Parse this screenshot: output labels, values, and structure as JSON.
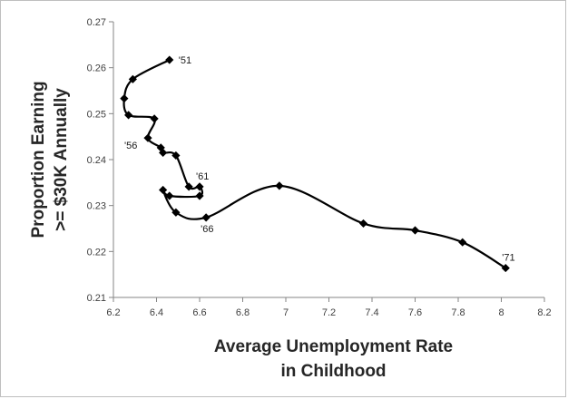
{
  "chart_data": {
    "type": "line",
    "smooth": true,
    "markers": "diamond",
    "line_color": "#000000",
    "grid": false,
    "legend": "none",
    "xlabel_lines": [
      "Average Unemployment Rate",
      "in Childhood"
    ],
    "ylabel_lines": [
      "Proportion Earning",
      ">= $30K Annually"
    ],
    "xlim": [
      6.2,
      8.2
    ],
    "ylim": [
      0.21,
      0.27
    ],
    "x_ticks": [
      "6.2",
      "6.4",
      "6.6",
      "6.8",
      "7",
      "7.2",
      "7.4",
      "7.6",
      "7.8",
      "8",
      "8.2"
    ],
    "y_ticks": [
      "0.21",
      "0.22",
      "0.23",
      "0.24",
      "0.25",
      "0.26",
      "0.27"
    ],
    "series": [
      {
        "points": [
          {
            "x": 6.46,
            "y": 0.2617,
            "label": "'51"
          },
          {
            "x": 6.29,
            "y": 0.2575
          },
          {
            "x": 6.25,
            "y": 0.2533
          },
          {
            "x": 6.27,
            "y": 0.2497
          },
          {
            "x": 6.39,
            "y": 0.2489
          },
          {
            "x": 6.36,
            "y": 0.2447,
            "label": "'56"
          },
          {
            "x": 6.42,
            "y": 0.2426
          },
          {
            "x": 6.43,
            "y": 0.2415
          },
          {
            "x": 6.49,
            "y": 0.2409
          },
          {
            "x": 6.55,
            "y": 0.2341
          },
          {
            "x": 6.6,
            "y": 0.2341,
            "label": "'61"
          },
          {
            "x": 6.6,
            "y": 0.2321
          },
          {
            "x": 6.46,
            "y": 0.2321
          },
          {
            "x": 6.43,
            "y": 0.2334
          },
          {
            "x": 6.49,
            "y": 0.2285
          },
          {
            "x": 6.63,
            "y": 0.2274,
            "label": "'66"
          },
          {
            "x": 6.97,
            "y": 0.2343
          },
          {
            "x": 7.36,
            "y": 0.2261
          },
          {
            "x": 7.6,
            "y": 0.2246
          },
          {
            "x": 7.82,
            "y": 0.222
          },
          {
            "x": 8.02,
            "y": 0.2164,
            "label": "'71"
          }
        ]
      }
    ]
  }
}
